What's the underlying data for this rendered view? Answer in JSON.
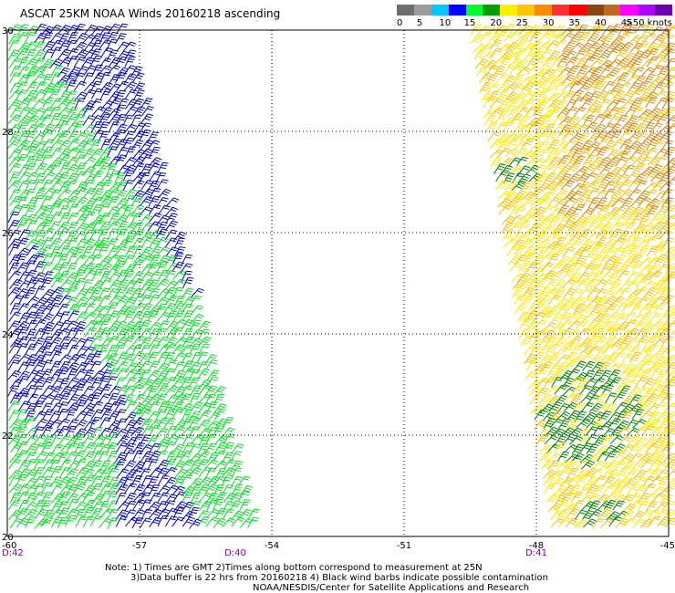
{
  "title": "ASCAT 25KM NOAA Winds 20160218 ascending",
  "legend": {
    "colors": [
      "#6e6e6e",
      "#9c9c9c",
      "#00c8ff",
      "#0000ff",
      "#00ff2a",
      "#00a000",
      "#ffee00",
      "#ffc400",
      "#ff8c00",
      "#ff2f2f",
      "#ff0000",
      "#8b4513",
      "#c06a20",
      "#ff00ff",
      "#b000ff",
      "#6a00b0"
    ],
    "labels": [
      "0",
      "5",
      "10",
      "15",
      "20",
      "25",
      "30",
      "35",
      "40",
      "45",
      ">50 knots"
    ]
  },
  "map": {
    "lat_labels": [
      "30",
      "28",
      "26",
      "24",
      "22",
      "20"
    ],
    "lon_labels": [
      "-60",
      "-57",
      "-54",
      "-51",
      "-48",
      "-45"
    ],
    "time_labels": [
      "D:42",
      "D:40",
      "D:41"
    ]
  },
  "swaths": [
    {
      "name": "western-swath",
      "colors": [
        "#00e020",
        "#0000c8"
      ]
    },
    {
      "name": "eastern-swath",
      "colors": [
        "#ffe800",
        "#f5c000",
        "#d8850a",
        "#008000"
      ]
    }
  ],
  "notes": {
    "line1": "Note: 1) Times are GMT 2)Times along bottom correspond to measurement at 25N",
    "line2": "3)Data buffer is 22 hrs from 20160218 4) Black wind barbs indicate possible contamination",
    "line3": "NOAA/NESDIS/Center for Satellite Applications and Research"
  }
}
